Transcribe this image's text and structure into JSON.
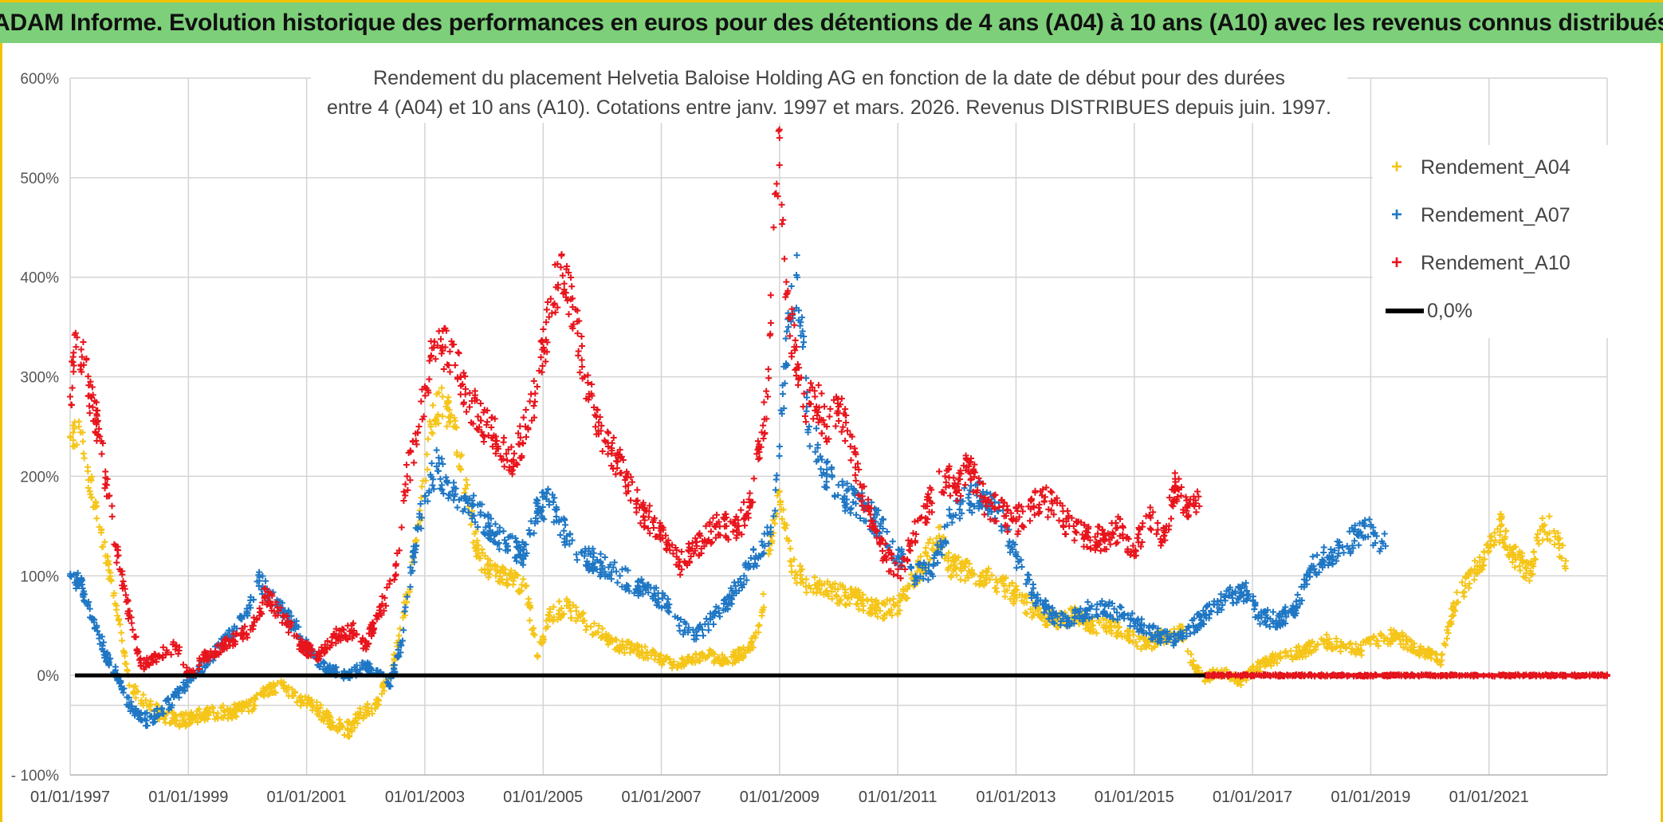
{
  "banner": {
    "title": "ADAM Informe. Evolution historique des performances en euros pour des détentions de 4 ans (A04) à 10 ans (A10) avec les revenus connus distribués"
  },
  "colors": {
    "banner_bg": "#7dcf7a",
    "frame": "#f2c200",
    "a04": "#f5c518",
    "a07": "#1f77c4",
    "a10": "#e8141c",
    "zero": "#000000",
    "grid": "#d4d4d4"
  },
  "chart_data": {
    "type": "scatter",
    "title": [
      "Rendement du placement Helvetia Baloise Holding AG en fonction de la date de début pour des durées",
      "entre 4 (A04) et 10 ans (A10). Cotations entre janv. 1997 et mars. 2026. Revenus DISTRIBUES depuis juin. 1997."
    ],
    "x_range": [
      1997.0,
      2023.0
    ],
    "ylim": [
      -100,
      600
    ],
    "y_ticks": [
      600,
      500,
      400,
      300,
      200,
      100,
      0,
      -100
    ],
    "y_tick_labels": [
      "600%",
      "500%",
      "400%",
      "300%",
      "200%",
      "100%",
      "0%",
      "- 100%"
    ],
    "x_ticks": [
      1997,
      1999,
      2001,
      2003,
      2005,
      2007,
      2009,
      2011,
      2013,
      2015,
      2017,
      2019,
      2021
    ],
    "x_tick_labels": [
      "01/01/1997",
      "01/01/1999",
      "01/01/2001",
      "01/01/2003",
      "01/01/2005",
      "01/01/2007",
      "01/01/2009",
      "01/01/2011",
      "01/01/2013",
      "01/01/2015",
      "01/01/2017",
      "01/01/2019",
      "01/01/2021"
    ],
    "legend": [
      "Rendement_A04",
      "Rendement_A07",
      "Rendement_A10",
      "0,0%"
    ],
    "legend_position": "top-right",
    "series": [
      {
        "name": "Rendement_A04",
        "color": "#f5c518",
        "x": [
          1997.0,
          1997.15,
          1997.3,
          1997.45,
          1997.6,
          1997.8,
          1998.0,
          1998.3,
          1998.6,
          1998.9,
          1999.2,
          1999.5,
          1999.8,
          2000.1,
          2000.3,
          2000.6,
          2000.9,
          2001.1,
          2001.4,
          2001.7,
          2001.9,
          2002.2,
          2002.5,
          2002.7,
          2002.9,
          2003.1,
          2003.3,
          2003.6,
          2003.9,
          2004.2,
          2004.5,
          2004.7,
          2004.9,
          2005.1,
          2005.4,
          2005.7,
          2006.0,
          2006.3,
          2006.6,
          2006.9,
          2007.2,
          2007.5,
          2007.8,
          2008.1,
          2008.3,
          2008.5,
          2008.7,
          2008.85,
          2009.0,
          2009.2,
          2009.5,
          2009.8,
          2010.1,
          2010.4,
          2010.7,
          2011.0,
          2011.2,
          2011.5,
          2011.7,
          2011.9,
          2012.2,
          2012.5,
          2012.8,
          2013.1,
          2013.4,
          2013.7,
          2014.0,
          2014.3,
          2014.6,
          2014.9,
          2015.2,
          2015.5,
          2015.8,
          2016.0,
          2016.2,
          2016.4,
          2016.6,
          2016.8,
          2017.0,
          2017.3,
          2017.6,
          2017.9,
          2018.2,
          2018.5,
          2018.8,
          2019.1,
          2019.4,
          2019.7,
          2020.0,
          2020.2,
          2020.4,
          2020.6,
          2020.8,
          2021.0,
          2021.2,
          2021.4,
          2021.7,
          2021.9,
          2022.1,
          2022.3
        ],
        "y": [
          240,
          255,
          205,
          170,
          120,
          60,
          -10,
          -30,
          -40,
          -45,
          -40,
          -38,
          -35,
          -30,
          -15,
          -10,
          -25,
          -30,
          -45,
          -55,
          -40,
          -30,
          20,
          80,
          150,
          250,
          280,
          220,
          120,
          100,
          95,
          90,
          20,
          60,
          70,
          55,
          40,
          30,
          25,
          20,
          10,
          15,
          20,
          15,
          20,
          25,
          60,
          140,
          185,
          110,
          90,
          85,
          80,
          75,
          65,
          70,
          90,
          120,
          140,
          110,
          105,
          100,
          90,
          75,
          60,
          55,
          60,
          50,
          50,
          40,
          30,
          40,
          45,
          10,
          -5,
          5,
          0,
          -5,
          5,
          15,
          20,
          25,
          35,
          30,
          25,
          35,
          40,
          30,
          20,
          15,
          70,
          90,
          110,
          125,
          150,
          120,
          105,
          150,
          145,
          115
        ]
      },
      {
        "name": "Rendement_A07",
        "color": "#1f77c4",
        "x": [
          1997.0,
          1997.15,
          1997.3,
          1997.45,
          1997.6,
          1997.8,
          1998.0,
          1998.2,
          1998.5,
          1998.8,
          1999.1,
          1999.4,
          1999.7,
          2000.0,
          2000.2,
          2000.5,
          2000.8,
          2001.1,
          2001.4,
          2001.7,
          2002.0,
          2002.2,
          2002.4,
          2002.6,
          2002.8,
          2003.0,
          2003.2,
          2003.5,
          2003.8,
          2004.1,
          2004.4,
          2004.7,
          2004.9,
          2005.1,
          2005.4,
          2005.7,
          2006.0,
          2006.3,
          2006.6,
          2006.9,
          2007.1,
          2007.3,
          2007.6,
          2007.9,
          2008.2,
          2008.4,
          2008.6,
          2008.75,
          2008.9,
          2009.0,
          2009.15,
          2009.3,
          2009.5,
          2009.8,
          2010.1,
          2010.4,
          2010.7,
          2011.0,
          2011.3,
          2011.6,
          2011.9,
          2012.1,
          2012.4,
          2012.7,
          2013.0,
          2013.3,
          2013.6,
          2013.9,
          2014.2,
          2014.5,
          2014.8,
          2015.1,
          2015.4,
          2015.7,
          2016.0,
          2016.3,
          2016.6,
          2016.9,
          2017.1,
          2017.4,
          2017.7,
          2018.0,
          2018.3,
          2018.6,
          2018.9,
          2019.1,
          2019.25
        ],
        "y": [
          100,
          95,
          70,
          50,
          20,
          0,
          -30,
          -45,
          -40,
          -20,
          0,
          20,
          40,
          60,
          95,
          70,
          50,
          20,
          5,
          0,
          10,
          5,
          -10,
          30,
          120,
          180,
          210,
          180,
          170,
          150,
          130,
          120,
          165,
          175,
          140,
          120,
          110,
          100,
          90,
          80,
          70,
          50,
          40,
          60,
          80,
          100,
          120,
          130,
          160,
          230,
          350,
          400,
          250,
          200,
          180,
          170,
          150,
          120,
          100,
          110,
          160,
          175,
          180,
          165,
          120,
          80,
          60,
          55,
          65,
          70,
          60,
          50,
          40,
          35,
          50,
          65,
          80,
          85,
          60,
          55,
          65,
          110,
          120,
          130,
          150,
          140,
          130
        ]
      },
      {
        "name": "Rendement_A10",
        "color": "#e8141c",
        "x": [
          1997.0,
          1997.1,
          1997.2,
          1997.35,
          1997.5,
          1997.65,
          1997.8,
          1998.0,
          1998.2,
          1998.5,
          1998.8,
          1999.0,
          1999.3,
          1999.6,
          1999.9,
          2000.1,
          2000.3,
          2000.6,
          2000.9,
          2001.2,
          2001.5,
          2001.8,
          2002.0,
          2002.2,
          2002.5,
          2002.7,
          2002.9,
          2003.1,
          2003.3,
          2003.6,
          2003.9,
          2004.2,
          2004.5,
          2004.7,
          2004.9,
          2005.1,
          2005.3,
          2005.5,
          2005.7,
          2005.9,
          2006.1,
          2006.4,
          2006.7,
          2007.0,
          2007.3,
          2007.6,
          2007.9,
          2008.1,
          2008.3,
          2008.5,
          2008.65,
          2008.8,
          2008.9,
          2009.0,
          2009.1,
          2009.25,
          2009.4,
          2009.6,
          2009.8,
          2010.0,
          2010.2,
          2010.4,
          2010.6,
          2010.8,
          2011.0,
          2011.2,
          2011.5,
          2011.8,
          2012.0,
          2012.2,
          2012.4,
          2012.6,
          2012.8,
          2013.0,
          2013.3,
          2013.6,
          2013.9,
          2014.2,
          2014.5,
          2014.8,
          2015.0,
          2015.2,
          2015.5,
          2015.7,
          2015.9,
          2016.1
        ],
        "y": [
          280,
          330,
          320,
          280,
          240,
          180,
          120,
          60,
          10,
          20,
          30,
          0,
          20,
          30,
          40,
          50,
          80,
          60,
          30,
          20,
          40,
          45,
          30,
          60,
          100,
          200,
          250,
          320,
          330,
          300,
          260,
          240,
          210,
          250,
          290,
          360,
          410,
          370,
          300,
          260,
          230,
          200,
          160,
          150,
          110,
          130,
          150,
          150,
          150,
          170,
          230,
          280,
          450,
          540,
          380,
          330,
          270,
          280,
          250,
          270,
          230,
          180,
          150,
          120,
          100,
          130,
          170,
          200,
          190,
          210,
          180,
          170,
          160,
          155,
          170,
          175,
          150,
          140,
          135,
          150,
          120,
          160,
          140,
          190,
          170,
          170
        ]
      },
      {
        "name": "Rendement_A10_zero",
        "color": "#e8141c",
        "x": [
          2016.2,
          2016.4,
          2016.6,
          2016.8,
          2017.0,
          2017.2,
          2017.4,
          2017.6,
          2017.8,
          2018.0,
          2018.2,
          2018.4,
          2018.6,
          2018.8,
          2019.0,
          2019.2,
          2019.4,
          2019.6,
          2019.8,
          2020.0,
          2020.2,
          2020.4,
          2020.6,
          2020.8,
          2021.0,
          2021.2,
          2021.4,
          2021.6,
          2021.8,
          2022.0,
          2022.2,
          2022.4,
          2022.6,
          2022.8,
          2023.0
        ],
        "y": [
          0,
          0,
          0,
          0,
          0,
          0,
          0,
          0,
          0,
          0,
          0,
          0,
          0,
          0,
          0,
          0,
          0,
          0,
          0,
          0,
          0,
          0,
          0,
          0,
          0,
          0,
          0,
          0,
          0,
          0,
          0,
          0,
          0,
          0,
          0
        ]
      }
    ],
    "reference_line": {
      "name": "0,0%",
      "y": 0
    }
  }
}
